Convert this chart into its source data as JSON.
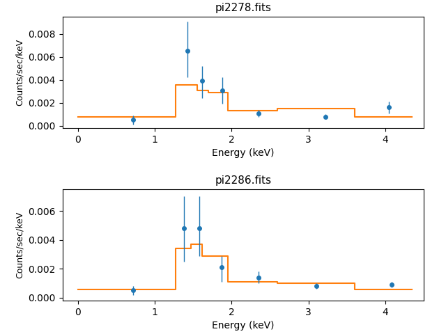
{
  "panel1": {
    "title": "pi2278.fits",
    "data_x": [
      0.72,
      1.43,
      1.62,
      1.88,
      2.35,
      3.22,
      4.05
    ],
    "data_y": [
      0.0005,
      0.0065,
      0.0039,
      0.0031,
      0.0011,
      0.0008,
      0.0016
    ],
    "data_yerr_lo": [
      0.0004,
      0.0023,
      0.0015,
      0.0012,
      0.0003,
      0.0002,
      0.0005
    ],
    "data_yerr_hi": [
      0.0004,
      0.0026,
      0.0013,
      0.0011,
      0.0003,
      0.0002,
      0.0005
    ],
    "model_x": [
      0.0,
      1.27,
      1.27,
      1.55,
      1.55,
      1.7,
      1.7,
      1.95,
      1.95,
      2.6,
      2.6,
      3.6,
      3.6,
      4.35
    ],
    "model_y": [
      0.0008,
      0.0008,
      0.00355,
      0.00355,
      0.0031,
      0.0031,
      0.0029,
      0.0029,
      0.0013,
      0.0013,
      0.0015,
      0.0015,
      0.0008,
      0.0008
    ],
    "ylabel": "Counts/sec/keV",
    "xlabel": "Energy (keV)",
    "ylim": [
      -0.0002,
      0.0095
    ],
    "yticks": [
      0.0,
      0.002,
      0.004,
      0.006,
      0.008
    ]
  },
  "panel2": {
    "title": "pi2286.fits",
    "data_x": [
      0.72,
      1.38,
      1.58,
      1.87,
      2.35,
      3.1,
      4.08
    ],
    "data_y": [
      0.0005,
      0.0048,
      0.0048,
      0.0021,
      0.0014,
      0.0008,
      0.0009
    ],
    "data_yerr_lo": [
      0.0003,
      0.0023,
      0.0019,
      0.001,
      0.0004,
      0.0002,
      0.0002
    ],
    "data_yerr_hi": [
      0.0003,
      0.0022,
      0.0022,
      0.0008,
      0.0004,
      0.0002,
      0.0002
    ],
    "model_x": [
      0.0,
      1.27,
      1.27,
      1.47,
      1.47,
      1.62,
      1.62,
      1.95,
      1.95,
      2.6,
      2.6,
      3.6,
      3.6,
      4.35
    ],
    "model_y": [
      0.00055,
      0.00055,
      0.0034,
      0.0034,
      0.0037,
      0.0037,
      0.0029,
      0.0029,
      0.0011,
      0.0011,
      0.001,
      0.001,
      0.00055,
      0.00055
    ],
    "ylabel": "Counts/sec/keV",
    "xlabel": "Energy (keV)",
    "ylim": [
      -0.0002,
      0.0075
    ],
    "yticks": [
      0.0,
      0.002,
      0.004,
      0.006
    ]
  },
  "data_color": "#1f77b4",
  "model_color": "#ff7f0e",
  "xlim": [
    -0.2,
    4.5
  ],
  "xticks": [
    0,
    1,
    2,
    3,
    4
  ]
}
